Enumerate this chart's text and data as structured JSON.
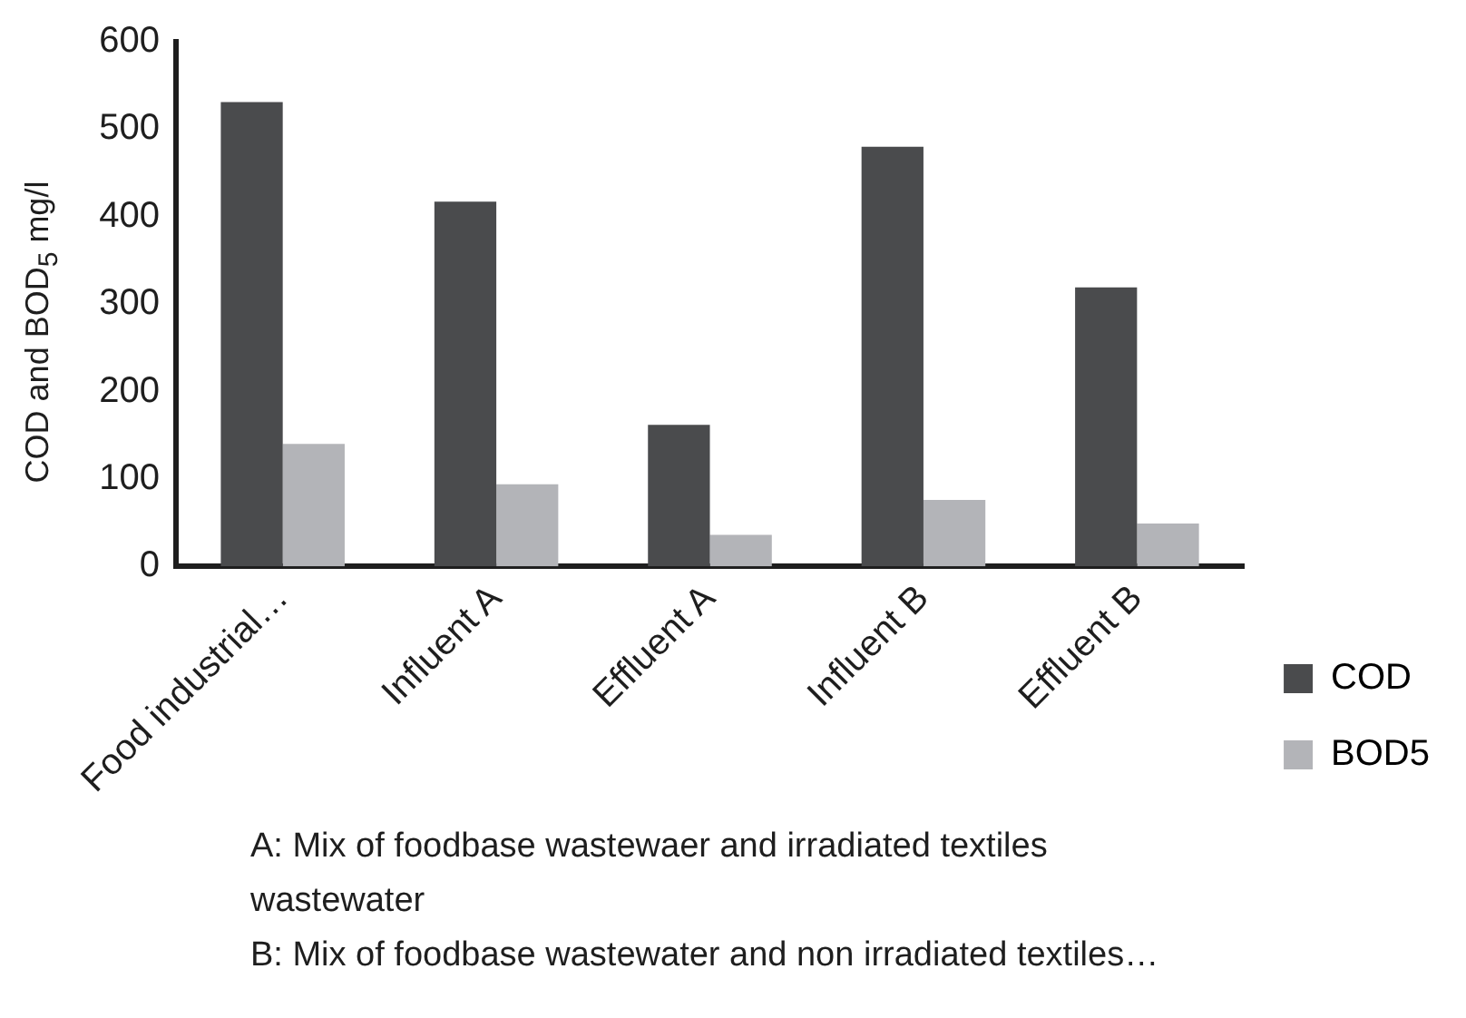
{
  "chart_data": {
    "type": "bar",
    "ylabel": "COD and BOD$_{5}$ mg/l",
    "categories": [
      "Food industrial…",
      "Influent A",
      "Effluent A",
      "Influent B",
      "Effluent B"
    ],
    "series": [
      {
        "name": "COD",
        "color": "#4a4b4d",
        "values": [
          531,
          417,
          162,
          480,
          319
        ]
      },
      {
        "name": "BOD5",
        "color": "#b3b4b8",
        "values": [
          140,
          94,
          36,
          76,
          49
        ]
      }
    ],
    "ylim": [
      0,
      600
    ],
    "yticks": [
      0,
      100,
      200,
      300,
      400,
      500,
      600
    ],
    "grid": false,
    "legend": "bottom right",
    "annotations": [
      "A: Mix of foodbase wastewaer and irradiated textiles wastewater",
      "B: Mix of foodbase wastewater and non irradiated textiles…"
    ]
  }
}
